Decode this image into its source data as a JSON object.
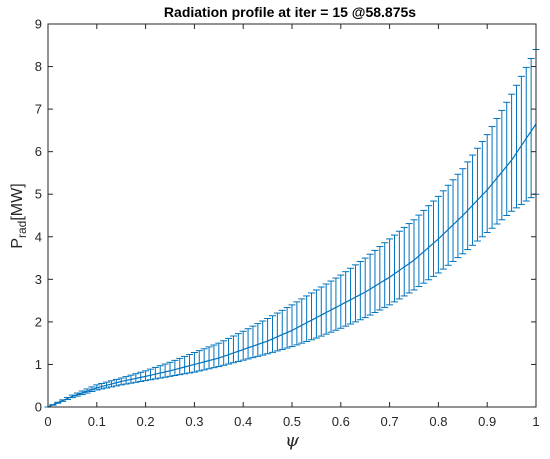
{
  "chart_data": {
    "type": "line",
    "title": "Radiation profile at iter = 15 @58.875s",
    "xlabel": "ψ",
    "ylabel": {
      "main": "P",
      "sub": "rad",
      "unit": "[MW]"
    },
    "xlim": [
      0,
      1
    ],
    "ylim": [
      0,
      9
    ],
    "xticks": [
      "0",
      "0.1",
      "0.2",
      "0.3",
      "0.4",
      "0.5",
      "0.6",
      "0.7",
      "0.8",
      "0.9",
      "1"
    ],
    "yticks": [
      "0",
      "1",
      "2",
      "3",
      "4",
      "5",
      "6",
      "7",
      "8",
      "9"
    ],
    "grid": false,
    "legend": "none",
    "color": "#0072BD",
    "series": [
      {
        "x": [
          0,
          0.05,
          0.1,
          0.15,
          0.2,
          0.25,
          0.3,
          0.35,
          0.4,
          0.45,
          0.5,
          0.55,
          0.6,
          0.65,
          0.7,
          0.75,
          0.8,
          0.85,
          0.9,
          0.95,
          1.0
        ],
        "y": [
          0,
          0.25,
          0.45,
          0.6,
          0.72,
          0.85,
          1.0,
          1.15,
          1.35,
          1.55,
          1.8,
          2.1,
          2.4,
          2.7,
          3.05,
          3.45,
          3.95,
          4.5,
          5.1,
          5.8,
          6.65
        ],
        "y_upper": [
          0,
          0.28,
          0.52,
          0.68,
          0.85,
          1.05,
          1.28,
          1.5,
          1.78,
          2.08,
          2.4,
          2.75,
          3.1,
          3.5,
          3.95,
          4.4,
          4.95,
          5.6,
          6.4,
          7.35,
          8.4
        ],
        "y_lower": [
          0,
          0.22,
          0.4,
          0.52,
          0.62,
          0.72,
          0.82,
          0.95,
          1.1,
          1.25,
          1.42,
          1.62,
          1.85,
          2.1,
          2.4,
          2.75,
          3.15,
          3.6,
          4.1,
          4.6,
          5.0
        ]
      }
    ]
  }
}
